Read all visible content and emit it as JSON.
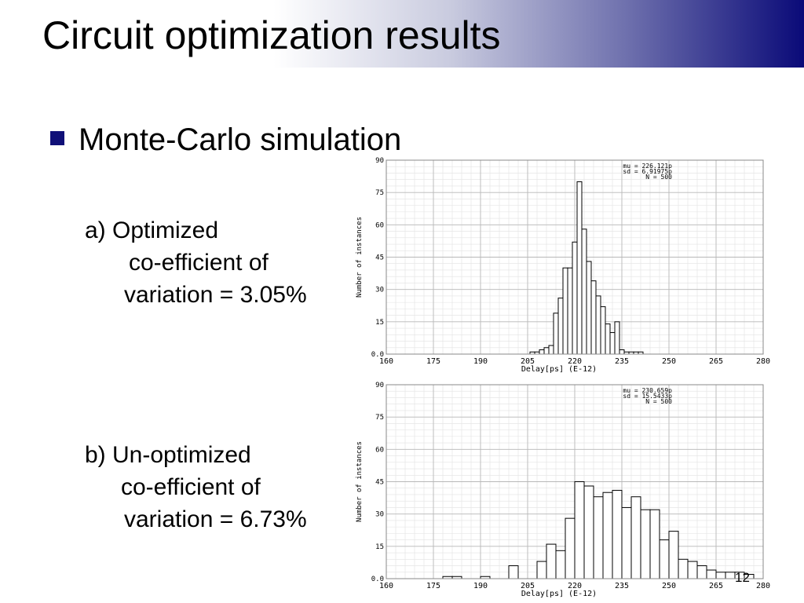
{
  "slide": {
    "title": "Circuit optimization results",
    "bullet": "Monte-Carlo simulation",
    "items": [
      {
        "lines": [
          "a)  Optimized",
          "co-efficient of",
          "variation = 3.05%"
        ]
      },
      {
        "lines": [
          "b)  Un-optimized",
          "co-efficient of",
          "variation = 6.73%"
        ]
      }
    ],
    "slide_number": "12"
  },
  "colors": {
    "title_gradient_end": "#0a0a78",
    "bullet": "#101078",
    "grid": "#b8b8b8",
    "bar_fill": "#ffffff",
    "bar_stroke": "#000000"
  },
  "chart_data": [
    {
      "type": "bar",
      "xlabel": "Delay[ps] (E-12)",
      "ylabel": "Number of instances",
      "xlim": [
        160,
        280
      ],
      "ylim": [
        0,
        90
      ],
      "xticks": [
        "160",
        "175",
        "190",
        "205",
        "220",
        "235",
        "250",
        "265",
        "280"
      ],
      "yticks": [
        "0.0",
        "15",
        "30",
        "45",
        "60",
        "75",
        "90"
      ],
      "grid": true,
      "stats": [
        "mu = 226.121p",
        "sd = 6.91975p",
        "N = 500"
      ],
      "bin_start": 205.75,
      "bin_width": 1.5,
      "values": [
        1,
        1,
        2,
        3,
        4,
        19,
        26,
        40,
        40,
        52,
        80,
        58,
        43,
        34,
        27,
        22,
        14,
        10,
        15,
        2,
        1,
        1,
        1,
        1
      ]
    },
    {
      "type": "bar",
      "xlabel": "Delay[ps] (E-12)",
      "ylabel": "Number of instances",
      "xlim": [
        160,
        280
      ],
      "ylim": [
        0,
        90
      ],
      "xticks": [
        "160",
        "175",
        "190",
        "205",
        "220",
        "235",
        "250",
        "265",
        "280"
      ],
      "yticks": [
        "0.0",
        "15",
        "30",
        "45",
        "60",
        "75",
        "90"
      ],
      "grid": true,
      "stats": [
        "mu = 230.659p",
        "sd = 15.5433p",
        "N = 500"
      ],
      "bin_start": 178,
      "bin_width": 3,
      "values": [
        1,
        1,
        0,
        0,
        1,
        0,
        0,
        6,
        0,
        0,
        8,
        16,
        13,
        28,
        45,
        43,
        38,
        40,
        41,
        33,
        38,
        32,
        32,
        18,
        22,
        9,
        8,
        6,
        4,
        3,
        3,
        3,
        2
      ]
    }
  ]
}
